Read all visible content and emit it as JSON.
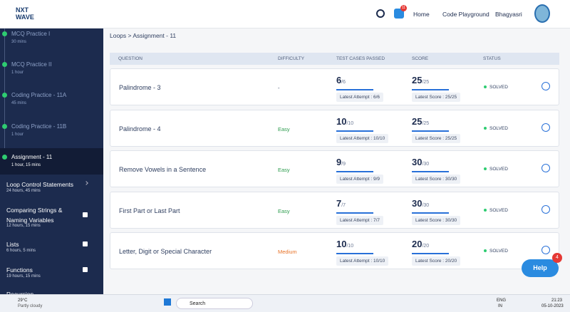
{
  "header": {
    "logo": "NXT WAVE",
    "badge": "11",
    "nav": [
      "Home",
      "Code Playground"
    ],
    "user": "Bhagyasri"
  },
  "sidebar": {
    "items": [
      {
        "title": "MCQ Practice I",
        "duration": "30 mins"
      },
      {
        "title": "MCQ Practice II",
        "duration": "1 hour"
      },
      {
        "title": "Coding Practice - 11A",
        "duration": "45 mins"
      },
      {
        "title": "Coding Practice - 11B",
        "duration": "1 hour"
      },
      {
        "title": "Assignment - 11",
        "duration": "1 hour, 15 mins"
      }
    ],
    "topics": [
      {
        "title": "Loop Control Statements",
        "duration": "24 hours, 45 mins"
      },
      {
        "title": "Comparing Strings & Naming Variables",
        "duration": "12 hours, 15 mins"
      },
      {
        "title": "Lists",
        "duration": "6 hours, 5 mins"
      },
      {
        "title": "Functions",
        "duration": "19 hours, 15 mins"
      },
      {
        "title": "Recursion",
        "duration": ""
      }
    ]
  },
  "breadcrumb": "Loops > Assignment - 11",
  "table": {
    "columns": [
      "QUESTION",
      "DIFFICULTY",
      "TEST CASES PASSED",
      "SCORE",
      "STATUS"
    ],
    "rows": [
      {
        "question": "Palindrome - 3",
        "difficulty": "-",
        "passed": "6",
        "total": "/6",
        "attempt": "Latest Attempt : 6/6",
        "score": "25",
        "max": "/25",
        "latest": "Latest Score : 25/25",
        "status": "SOLVED"
      },
      {
        "question": "Palindrome - 4",
        "difficulty": "Easy",
        "passed": "10",
        "total": "/10",
        "attempt": "Latest Attempt : 10/10",
        "score": "25",
        "max": "/25",
        "latest": "Latest Score : 25/25",
        "status": "SOLVED"
      },
      {
        "question": "Remove Vowels in a Sentence",
        "difficulty": "Easy",
        "passed": "9",
        "total": "/9",
        "attempt": "Latest Attempt : 9/9",
        "score": "30",
        "max": "/30",
        "latest": "Latest Score : 30/30",
        "status": "SOLVED"
      },
      {
        "question": "First Part or Last Part",
        "difficulty": "Easy",
        "passed": "7",
        "total": "/7",
        "attempt": "Latest Attempt : 7/7",
        "score": "30",
        "max": "/30",
        "latest": "Latest Score : 30/30",
        "status": "SOLVED"
      },
      {
        "question": "Letter, Digit or Special Character",
        "difficulty": "Medium",
        "passed": "10",
        "total": "/10",
        "attempt": "Latest Attempt : 10/10",
        "score": "20",
        "max": "/20",
        "latest": "Latest Score : 20/20",
        "status": "SOLVED"
      }
    ]
  },
  "help": {
    "label": "Help",
    "badge": "4"
  },
  "taskbar": {
    "temp": "29°C",
    "weather": "Partly cloudy",
    "search": "Search",
    "lang": "ENG",
    "region": "IN",
    "time": "21:23",
    "date": "05-10-2023"
  }
}
